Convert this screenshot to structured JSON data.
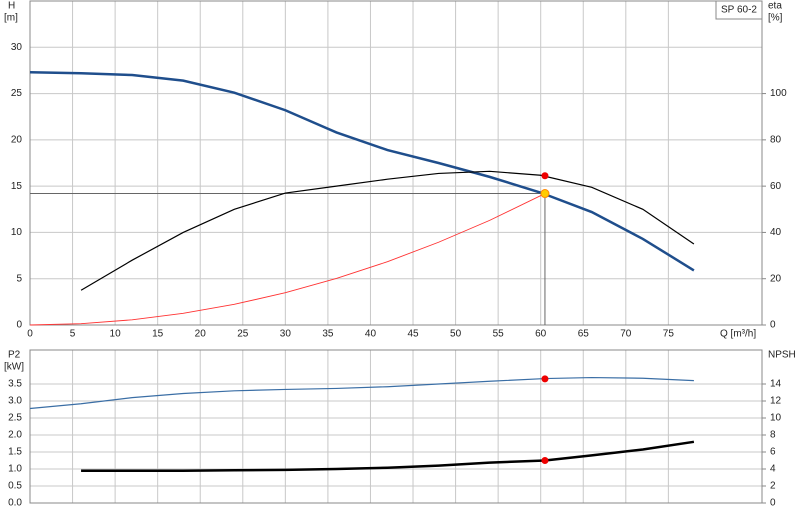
{
  "chart_data": [
    {
      "type": "line",
      "title": "SP 60-2",
      "xlabel": "Q [m³/h]",
      "ylabel": "H",
      "yunit": "[m]",
      "y2label": "eta",
      "y2unit": "[%]",
      "xlim": [
        0,
        86
      ],
      "xticks": [
        0,
        5,
        10,
        15,
        20,
        25,
        30,
        35,
        40,
        45,
        50,
        55,
        60,
        65,
        70,
        75
      ],
      "ylim": [
        0,
        35
      ],
      "yticks": [
        0,
        5,
        10,
        15,
        20,
        25,
        30
      ],
      "y2lim": [
        0,
        140
      ],
      "y2ticks": [
        0,
        20,
        40,
        60,
        80,
        100
      ],
      "grid": true,
      "series": [
        {
          "color": "#1f4e8c",
          "axis": "y",
          "x": [
            0,
            6,
            12,
            18,
            24,
            30,
            36,
            42,
            48,
            54,
            60,
            66,
            72,
            78
          ],
          "values": [
            27.3,
            27.2,
            27.0,
            26.4,
            25.1,
            23.2,
            20.8,
            18.9,
            17.5,
            16.0,
            14.3,
            12.2,
            9.3,
            5.9
          ]
        },
        {
          "color": "#000000",
          "axis": "y2",
          "x": [
            6,
            12,
            18,
            24,
            30,
            36,
            42,
            48,
            54,
            60,
            66,
            72,
            78
          ],
          "values": [
            15,
            28,
            40,
            50,
            57,
            60,
            63,
            65.5,
            66.4,
            64.7,
            59.5,
            50,
            35
          ]
        },
        {
          "color": "#ff3333",
          "axis": "y",
          "x": [
            0,
            6,
            12,
            18,
            24,
            30,
            36,
            42,
            48,
            54,
            60.5
          ],
          "values": [
            0,
            0.14,
            0.56,
            1.26,
            2.23,
            3.49,
            5.03,
            6.84,
            8.94,
            11.3,
            14.2
          ]
        }
      ],
      "duty_point": {
        "x": 60.5,
        "y": 14.2,
        "color": "#ffcc00"
      },
      "markers": [
        {
          "x": 60.5,
          "y": 64.5,
          "axis": "y2",
          "color": "#ee0000"
        }
      ]
    },
    {
      "type": "line",
      "ylabel": "P2",
      "yunit": "[kW]",
      "y2label": "NPSH",
      "xlim": [
        0,
        86
      ],
      "xticks": [
        0,
        5,
        10,
        15,
        20,
        25,
        30,
        35,
        40,
        45,
        50,
        55,
        60,
        65,
        70,
        75
      ],
      "ylim": [
        0,
        4.5
      ],
      "yticks": [
        {
          "value": 0,
          "label": "0.0"
        },
        0.5,
        {
          "value": 1,
          "label": "1.0"
        },
        1.5,
        {
          "value": 2,
          "label": "2.0"
        },
        2.5,
        {
          "value": 3,
          "label": "3.0"
        },
        3.5
      ],
      "y2lim": [
        0,
        18
      ],
      "y2ticks": [
        0,
        2,
        4,
        6,
        8,
        10,
        12,
        14
      ],
      "grid": true,
      "series": [
        {
          "color": "#3a6ea5",
          "axis": "y",
          "x": [
            0,
            6,
            12,
            18,
            24,
            30,
            36,
            42,
            48,
            54,
            60.5,
            66,
            72,
            78
          ],
          "values": [
            2.78,
            2.92,
            3.1,
            3.22,
            3.3,
            3.34,
            3.37,
            3.42,
            3.5,
            3.58,
            3.66,
            3.69,
            3.67,
            3.6
          ]
        },
        {
          "color": "#000000",
          "axis": "y2",
          "x": [
            6,
            12,
            18,
            24,
            30,
            36,
            42,
            48,
            54,
            60.5,
            66,
            72,
            78
          ],
          "values": [
            3.8,
            3.8,
            3.8,
            3.85,
            3.9,
            4.0,
            4.15,
            4.4,
            4.75,
            5.0,
            5.6,
            6.3,
            7.2
          ]
        }
      ],
      "markers": [
        {
          "x": 60.5,
          "y": 3.65,
          "axis": "y",
          "color": "#ee0000"
        },
        {
          "x": 60.5,
          "y": 5.0,
          "axis": "y2",
          "color": "#ee0000"
        }
      ]
    }
  ]
}
